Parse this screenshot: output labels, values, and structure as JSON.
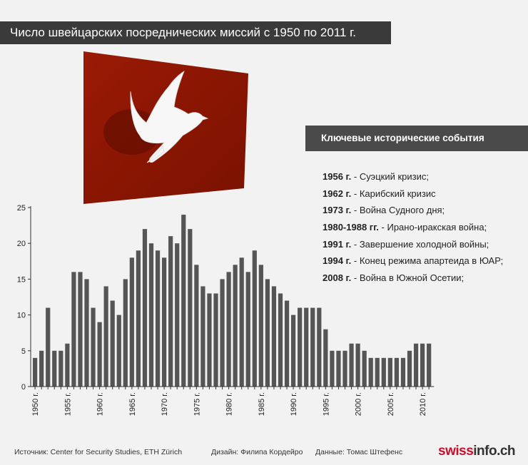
{
  "title": "Число швейцарских посреднических миссий с 1950 по 2011 г.",
  "events_header": "Ключевые исторические события",
  "events": [
    {
      "year": "1956 г.",
      "text": " - Суэцкий кризис;"
    },
    {
      "year": "1962 г.",
      "text": " - Карибский кризис"
    },
    {
      "year": "1973 г.",
      "text": " - Война Судного дня;"
    },
    {
      "year": "1980-1988 гг.",
      "text": " - Ирано-иракская война;"
    },
    {
      "year": "1991 г.",
      "text": " - Завершение холодной войны;"
    },
    {
      "year": "1994 г.",
      "text": " - Конец режима апартеида в ЮАР;"
    },
    {
      "year": "2008 г.",
      "text": " - Война в Южной Осетии;"
    }
  ],
  "footer": {
    "source": "Источник: Center for Security Studies, ETH Zürich",
    "design": "Дизайн: Филипа Кордейро",
    "data": "Данные: Томас Штефенс"
  },
  "logo": {
    "part1": "swiss",
    "part2": "info.ch"
  },
  "colors": {
    "bar": "#555555",
    "flag": "#8c1500",
    "header_bg": "#3a3a3a"
  },
  "chart_data": {
    "type": "bar",
    "x": [
      1950,
      1951,
      1952,
      1953,
      1954,
      1955,
      1956,
      1957,
      1958,
      1959,
      1960,
      1961,
      1962,
      1963,
      1964,
      1965,
      1966,
      1967,
      1968,
      1969,
      1970,
      1971,
      1972,
      1973,
      1974,
      1975,
      1976,
      1977,
      1978,
      1979,
      1980,
      1981,
      1982,
      1983,
      1984,
      1985,
      1986,
      1987,
      1988,
      1989,
      1990,
      1991,
      1992,
      1993,
      1994,
      1995,
      1996,
      1997,
      1998,
      1999,
      2000,
      2001,
      2002,
      2003,
      2004,
      2005,
      2006,
      2007,
      2008,
      2009,
      2010,
      2011
    ],
    "values": [
      4,
      5,
      11,
      5,
      5,
      6,
      16,
      16,
      15,
      11,
      9,
      14,
      12,
      10,
      15,
      18,
      19,
      22,
      20,
      19,
      18,
      21,
      20,
      24,
      22,
      17,
      14,
      13,
      13,
      15,
      16,
      17,
      18,
      16,
      19,
      17,
      15,
      14,
      13,
      12,
      10,
      11,
      11,
      11,
      11,
      8,
      5,
      5,
      5,
      6,
      6,
      5,
      4,
      4,
      4,
      4,
      4,
      4,
      5,
      6,
      6,
      6
    ],
    "tick_labels": [
      "1950 г.",
      "1955 г.",
      "1960 г.",
      "1965 г.",
      "1970 г.",
      "1975 г.",
      "1980 г.",
      "1985 г.",
      "1990 г.",
      "1995 г.",
      "2000 г.",
      "2005 г.",
      "2010 г."
    ],
    "tick_years": [
      1950,
      1955,
      1960,
      1965,
      1970,
      1975,
      1980,
      1985,
      1990,
      1995,
      2000,
      2005,
      2010
    ],
    "y_ticks": [
      0,
      5,
      10,
      15,
      20,
      25
    ],
    "ylim": [
      0,
      25
    ]
  }
}
